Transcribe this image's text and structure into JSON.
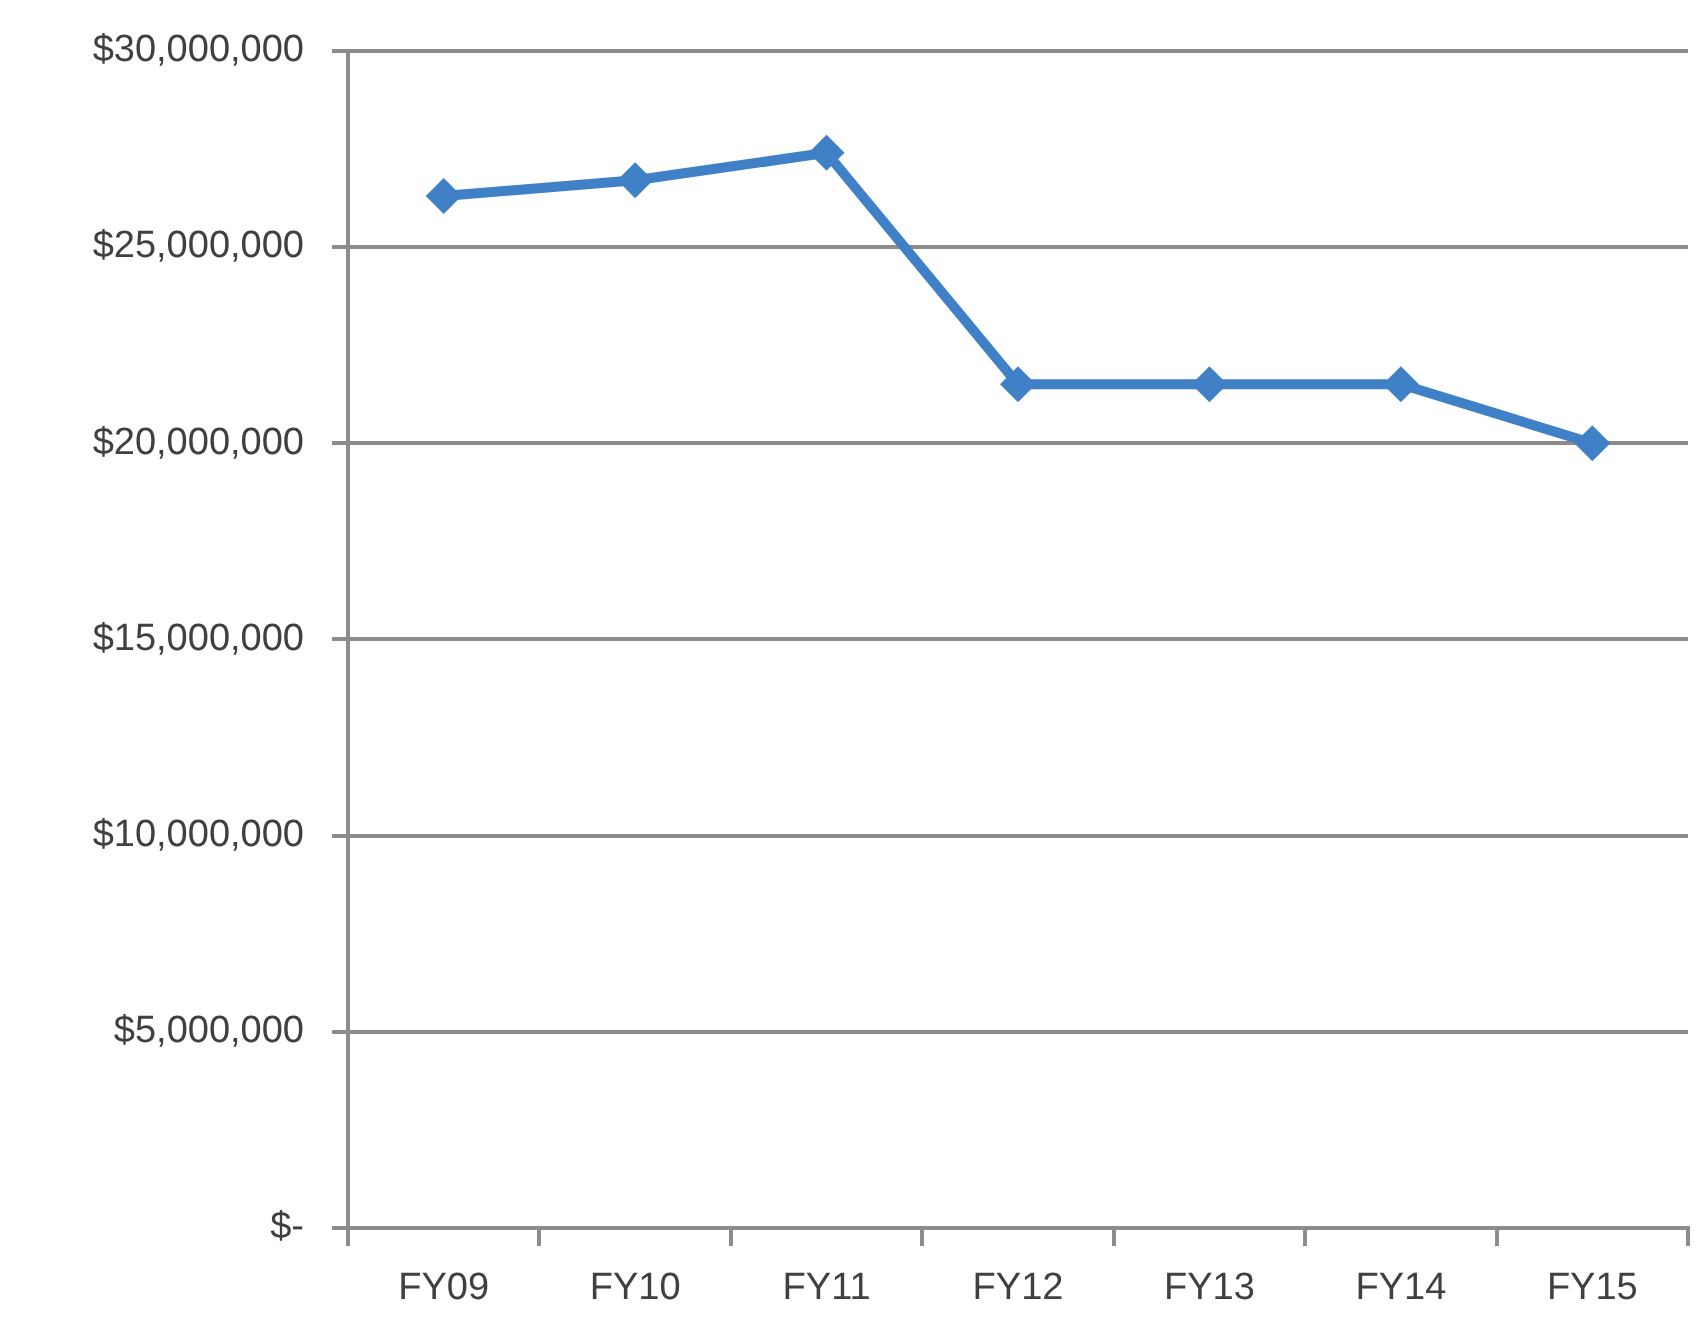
{
  "chart_data": {
    "type": "line",
    "categories": [
      "FY09",
      "FY10",
      "FY11",
      "FY12",
      "FY13",
      "FY14",
      "FY15"
    ],
    "values": [
      26300000,
      26700000,
      27400000,
      21500000,
      21500000,
      21500000,
      20000000
    ],
    "color": "#3f80c6",
    "ylim": [
      0,
      30000000
    ],
    "yticks": [
      {
        "value": 0,
        "label": "$-"
      },
      {
        "value": 5000000,
        "label": "$5,000,000"
      },
      {
        "value": 10000000,
        "label": "$10,000,000"
      },
      {
        "value": 15000000,
        "label": "$15,000,000"
      },
      {
        "value": 20000000,
        "label": "$20,000,000"
      },
      {
        "value": 25000000,
        "label": "$25,000,000"
      },
      {
        "value": 30000000,
        "label": "$30,000,000"
      }
    ],
    "grid": "y",
    "marker": "diamond",
    "line_style": "solid"
  }
}
